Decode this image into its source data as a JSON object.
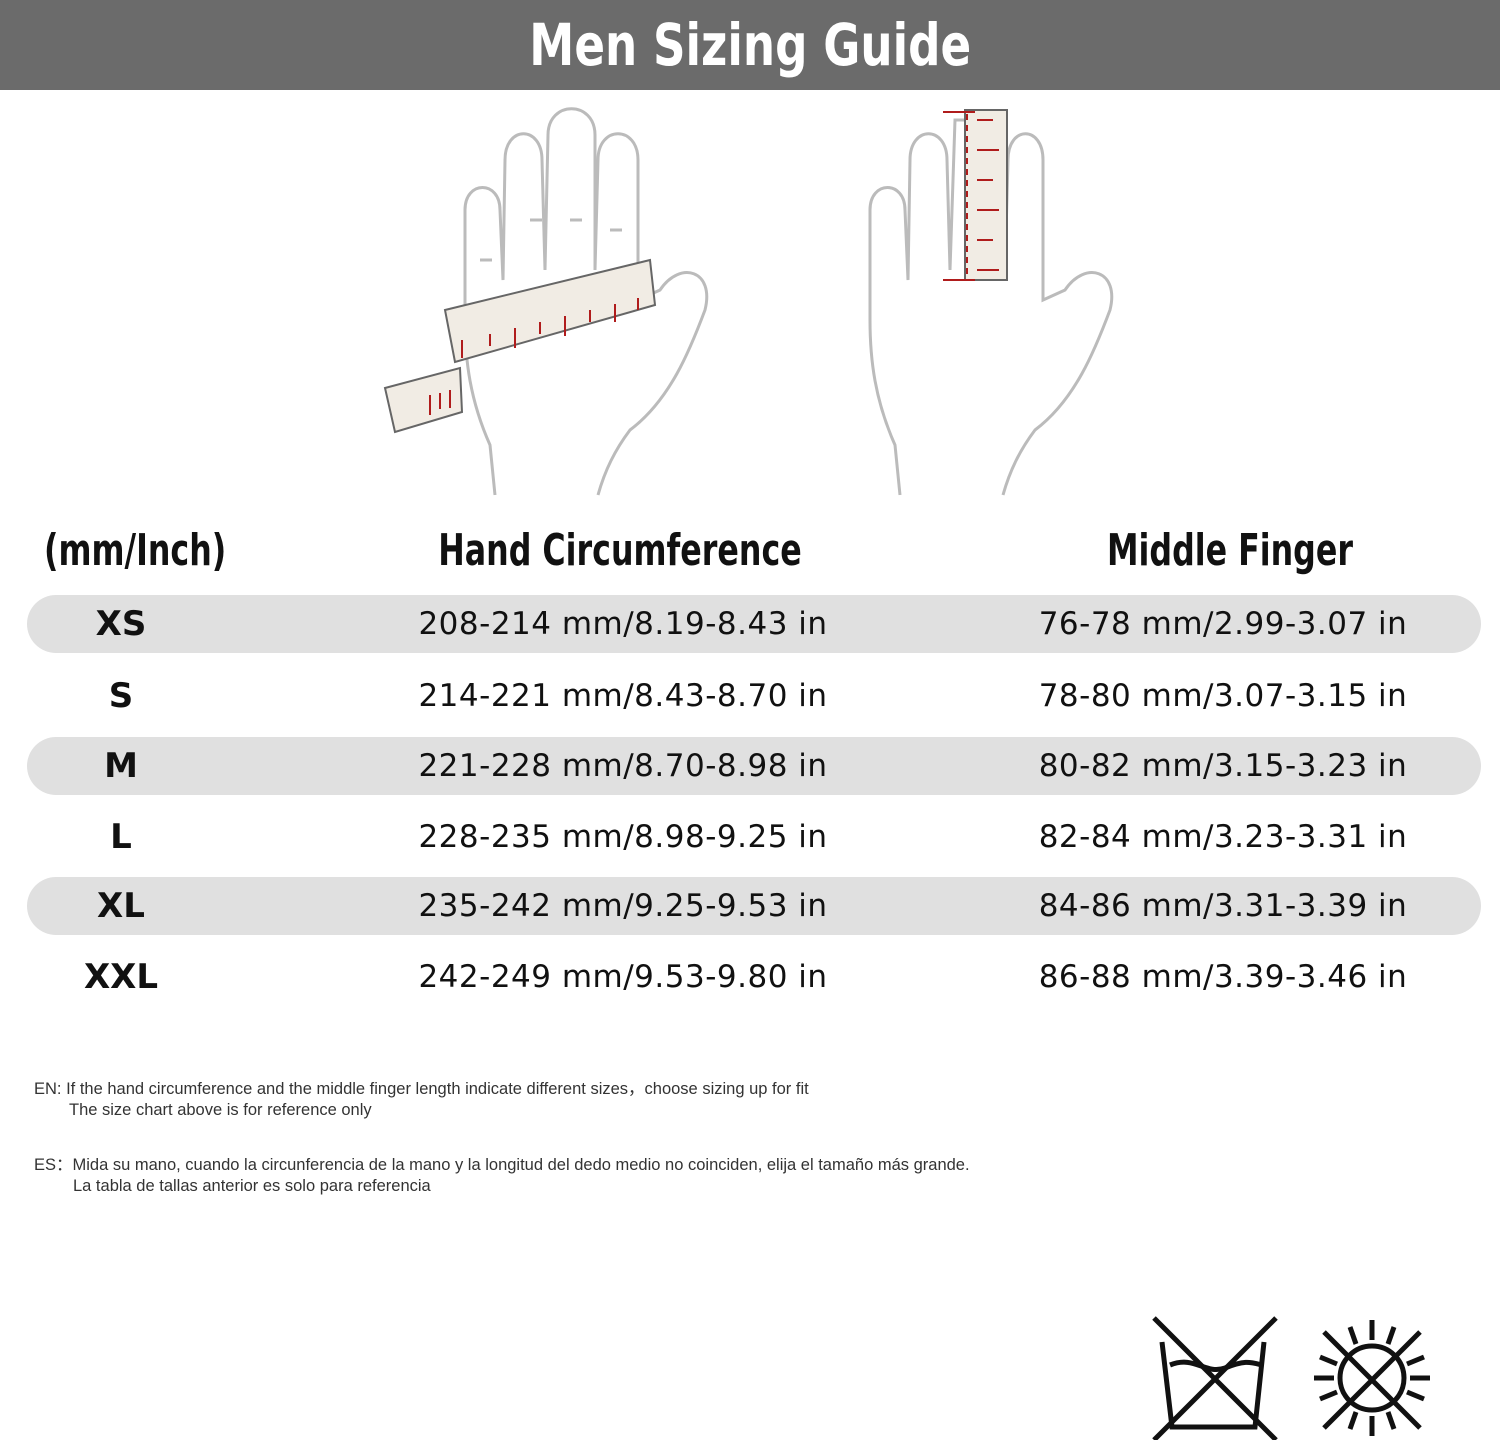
{
  "header": {
    "title": "Men Sizing Guide"
  },
  "table": {
    "unit_label": "(mm/Inch)",
    "columns": [
      "Hand Circumference",
      "Middle Finger"
    ],
    "rows": [
      {
        "size": "XS",
        "hand": "208-214 mm/8.19-8.43 in",
        "finger": "76-78 mm/2.99-3.07 in"
      },
      {
        "size": "S",
        "hand": "214-221 mm/8.43-8.70 in",
        "finger": "78-80 mm/3.07-3.15 in"
      },
      {
        "size": "M",
        "hand": "221-228 mm/8.70-8.98 in",
        "finger": "80-82 mm/3.15-3.23 in"
      },
      {
        "size": "L",
        "hand": "228-235 mm/8.98-9.25 in",
        "finger": "82-84 mm/3.23-3.31 in"
      },
      {
        "size": "XL",
        "hand": "235-242 mm/9.25-9.53 in",
        "finger": "84-86 mm/3.31-3.39 in"
      },
      {
        "size": "XXL",
        "hand": "242-249 mm/9.53-9.80 in",
        "finger": "86-88 mm/3.39-3.46 in"
      }
    ],
    "stripe_color": "#e0e0e0"
  },
  "notes": {
    "en_line1": "EN:  If the hand circumference and the middle finger length indicate different sizes，choose sizing up for fit",
    "en_line2": "The size chart above is for reference only",
    "es_line1": "ES：Mida su mano, cuando la circunferencia de la mano y la longitud del dedo medio no coinciden, elija el tamaño más grande.",
    "es_line2": "La tabla de tallas anterior es solo para referencia"
  },
  "icons": [
    "hand-circumference-illustration",
    "middle-finger-illustration",
    "do-not-wash-icon",
    "do-not-sun-dry-icon"
  ],
  "colors": {
    "header": "#6b6b6b",
    "tape_marks": "#b01c1c",
    "tape": "#f1ece4"
  }
}
